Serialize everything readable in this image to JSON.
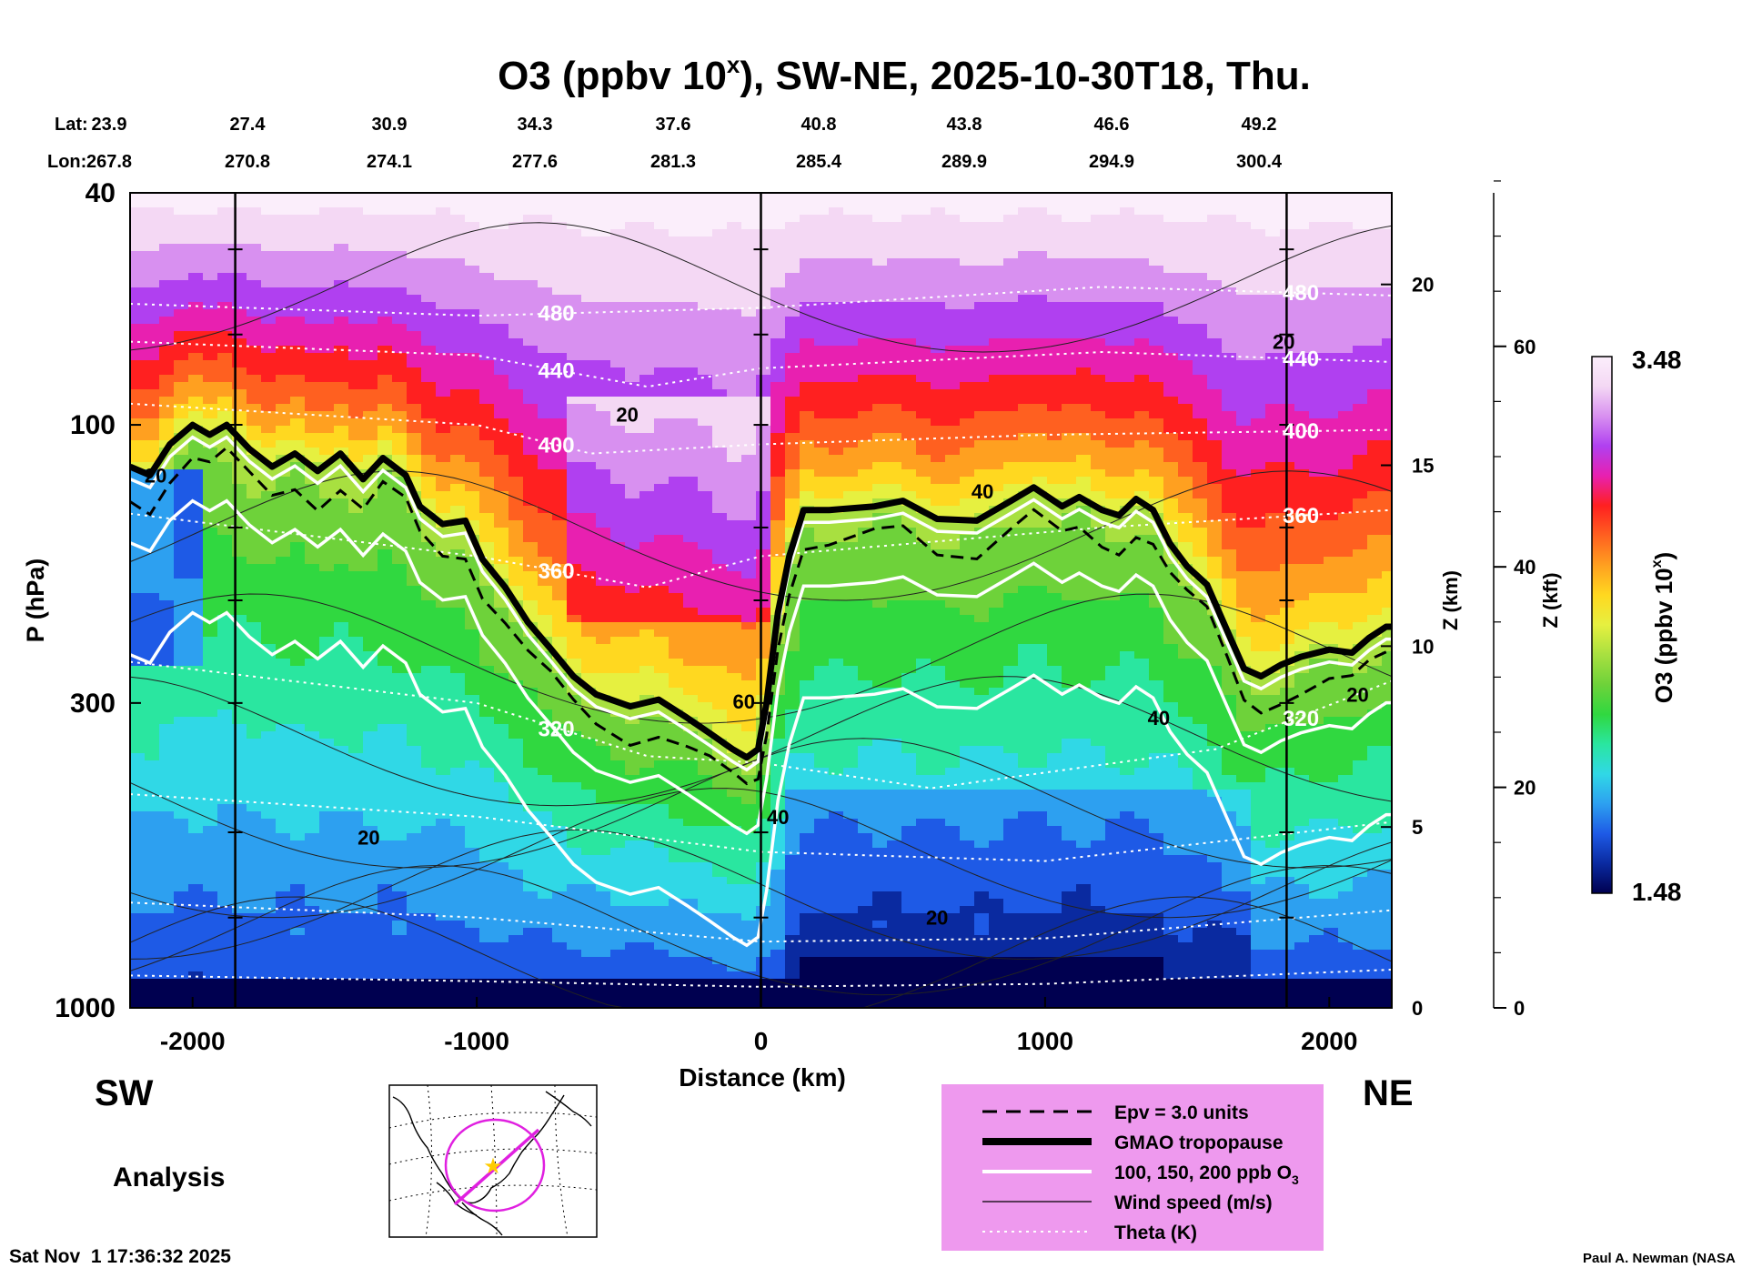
{
  "title": "O3 (ppbv 10",
  "title_sup": "x",
  "title_rest": "), SW-NE, 2025-10-30T18, Thu.",
  "lat_label": "Lat:",
  "lon_label": "Lon:",
  "lats": [
    "23.9",
    "27.4",
    "30.9",
    "34.3",
    "37.6",
    "40.8",
    "43.8",
    "46.6",
    "49.2"
  ],
  "lons": [
    "267.8",
    "270.8",
    "274.1",
    "277.6",
    "281.3",
    "285.4",
    "289.9",
    "294.9",
    "300.4"
  ],
  "y_label": "P (hPa)",
  "x_label": "Distance (km)",
  "z_km_label": "Z (km)",
  "z_kft_label": "Z (kft)",
  "cbar_label": "O3 (ppbv 10",
  "cbar_label_sup": "x",
  "cbar_label_end": ")",
  "cbar_max": "3.48",
  "cbar_min": "1.48",
  "sw_label": "SW",
  "ne_label": "NE",
  "analysis_label": "Analysis",
  "timestamp": "Sat Nov  1 17:36:32 2025",
  "credit": "Paul A. Newman (NASA",
  "legend": {
    "bg_color": "#ee99ee",
    "items": [
      {
        "label": "Epv = 3.0 units",
        "style": "dashed"
      },
      {
        "label": "GMAO tropopause",
        "style": "thick"
      },
      {
        "label": "100, 150, 200 ppb O",
        "sub": "3",
        "style": "white"
      },
      {
        "label": "Wind speed (m/s)",
        "style": "thin"
      },
      {
        "label": "Theta (K)",
        "style": "dotted"
      }
    ]
  },
  "chart_data": {
    "type": "heatmap",
    "x_range_km": [
      -2220,
      2220
    ],
    "x_ticks": [
      -2000,
      -1000,
      0,
      1000,
      2000
    ],
    "x_tick_labels": [
      "-2000",
      "-1000",
      "0",
      "1000",
      "2000"
    ],
    "y_range_hpa": [
      1000,
      40
    ],
    "y_scale": "log",
    "y_ticks": [
      40,
      100,
      300,
      1000
    ],
    "y_tick_labels": [
      "40",
      "100",
      "300",
      "1000"
    ],
    "z_km_ticks": [
      0,
      5,
      10,
      15,
      20
    ],
    "z_km_tick_labels": [
      "0",
      "5",
      "10",
      "15",
      "20"
    ],
    "z_kft_ticks": [
      0,
      20,
      40,
      60
    ],
    "z_kft_tick_labels": [
      "0",
      "20",
      "40",
      "60"
    ],
    "colorbar_range": [
      1.48,
      3.48
    ],
    "colors": [
      "#000050",
      "#0a2aa0",
      "#1e5ae6",
      "#2da0f0",
      "#30d8e6",
      "#2ae6a0",
      "#30d840",
      "#6ed23a",
      "#a8e040",
      "#e6f040",
      "#ffd820",
      "#ffa020",
      "#ff6020",
      "#ff2020",
      "#e820b0",
      "#b040f0",
      "#d890f0",
      "#f4d8f4",
      "#fbeefb"
    ],
    "tropopause": [
      [
        -2220,
        118
      ],
      [
        -2150,
        122
      ],
      [
        -2080,
        108
      ],
      [
        -2000,
        100
      ],
      [
        -1940,
        104
      ],
      [
        -1880,
        100
      ],
      [
        -1800,
        110
      ],
      [
        -1720,
        118
      ],
      [
        -1640,
        112
      ],
      [
        -1560,
        120
      ],
      [
        -1480,
        112
      ],
      [
        -1400,
        124
      ],
      [
        -1330,
        114
      ],
      [
        -1250,
        122
      ],
      [
        -1200,
        138
      ],
      [
        -1120,
        148
      ],
      [
        -1040,
        146
      ],
      [
        -980,
        170
      ],
      [
        -900,
        190
      ],
      [
        -820,
        218
      ],
      [
        -740,
        242
      ],
      [
        -660,
        270
      ],
      [
        -580,
        290
      ],
      [
        -460,
        304
      ],
      [
        -360,
        296
      ],
      [
        -260,
        318
      ],
      [
        -180,
        338
      ],
      [
        -100,
        360
      ],
      [
        -50,
        372
      ],
      [
        -10,
        360
      ],
      [
        20,
        300
      ],
      [
        60,
        210
      ],
      [
        100,
        168
      ],
      [
        150,
        140
      ],
      [
        240,
        140
      ],
      [
        400,
        138
      ],
      [
        500,
        135
      ],
      [
        620,
        145
      ],
      [
        760,
        146
      ],
      [
        880,
        135
      ],
      [
        960,
        128
      ],
      [
        1060,
        138
      ],
      [
        1120,
        133
      ],
      [
        1200,
        140
      ],
      [
        1260,
        143
      ],
      [
        1320,
        134
      ],
      [
        1380,
        140
      ],
      [
        1440,
        160
      ],
      [
        1500,
        175
      ],
      [
        1570,
        188
      ],
      [
        1640,
        225
      ],
      [
        1700,
        262
      ],
      [
        1760,
        270
      ],
      [
        1830,
        258
      ],
      [
        1900,
        250
      ],
      [
        2000,
        243
      ],
      [
        2080,
        246
      ],
      [
        2140,
        232
      ],
      [
        2200,
        222
      ],
      [
        2220,
        222
      ]
    ],
    "theta_levels": [
      {
        "label": "480",
        "values": [
          [
            -2220,
            62
          ],
          [
            -1000,
            65
          ],
          [
            0,
            63
          ],
          [
            1200,
            58
          ],
          [
            2220,
            60
          ]
        ]
      },
      {
        "label": "440",
        "values": [
          [
            -2220,
            72
          ],
          [
            -1000,
            76
          ],
          [
            -400,
            86
          ],
          [
            0,
            80
          ],
          [
            1200,
            75
          ],
          [
            2220,
            78
          ]
        ]
      },
      {
        "label": "400",
        "values": [
          [
            -2220,
            92
          ],
          [
            -1000,
            100
          ],
          [
            -600,
            112
          ],
          [
            0,
            108
          ],
          [
            1000,
            104
          ],
          [
            2220,
            102
          ]
        ]
      },
      {
        "label": "360",
        "values": [
          [
            -2220,
            142
          ],
          [
            -1000,
            168
          ],
          [
            -400,
            190
          ],
          [
            0,
            168
          ],
          [
            1200,
            150
          ],
          [
            2220,
            140
          ]
        ]
      },
      {
        "label": "320",
        "values": [
          [
            -2220,
            255
          ],
          [
            -1000,
            300
          ],
          [
            -400,
            370
          ],
          [
            0,
            380
          ],
          [
            600,
            420
          ],
          [
            1600,
            360
          ],
          [
            2220,
            275
          ]
        ]
      },
      {
        "label": "",
        "values": [
          [
            -2220,
            430
          ],
          [
            -1000,
            470
          ],
          [
            0,
            540
          ],
          [
            1000,
            560
          ],
          [
            2220,
            480
          ]
        ]
      },
      {
        "label": "",
        "values": [
          [
            -2220,
            660
          ],
          [
            -1000,
            700
          ],
          [
            0,
            770
          ],
          [
            1000,
            760
          ],
          [
            2220,
            680
          ]
        ]
      },
      {
        "label": "",
        "values": [
          [
            -2220,
            880
          ],
          [
            -1000,
            900
          ],
          [
            0,
            920
          ],
          [
            1000,
            910
          ],
          [
            2220,
            860
          ]
        ]
      }
    ],
    "wind_labels": [
      {
        "label": "20",
        "x": -2130,
        "p": 122
      },
      {
        "label": "20",
        "x": -470,
        "p": 96
      },
      {
        "label": "20",
        "x": 1840,
        "p": 72
      },
      {
        "label": "40",
        "x": 780,
        "p": 130
      },
      {
        "label": "60",
        "x": -60,
        "p": 298
      },
      {
        "label": "40",
        "x": 1400,
        "p": 318
      },
      {
        "label": "40",
        "x": 60,
        "p": 470
      },
      {
        "label": "20",
        "x": -1380,
        "p": 510
      },
      {
        "label": "20",
        "x": 620,
        "p": 700
      },
      {
        "label": "20",
        "x": 2100,
        "p": 290
      }
    ]
  }
}
